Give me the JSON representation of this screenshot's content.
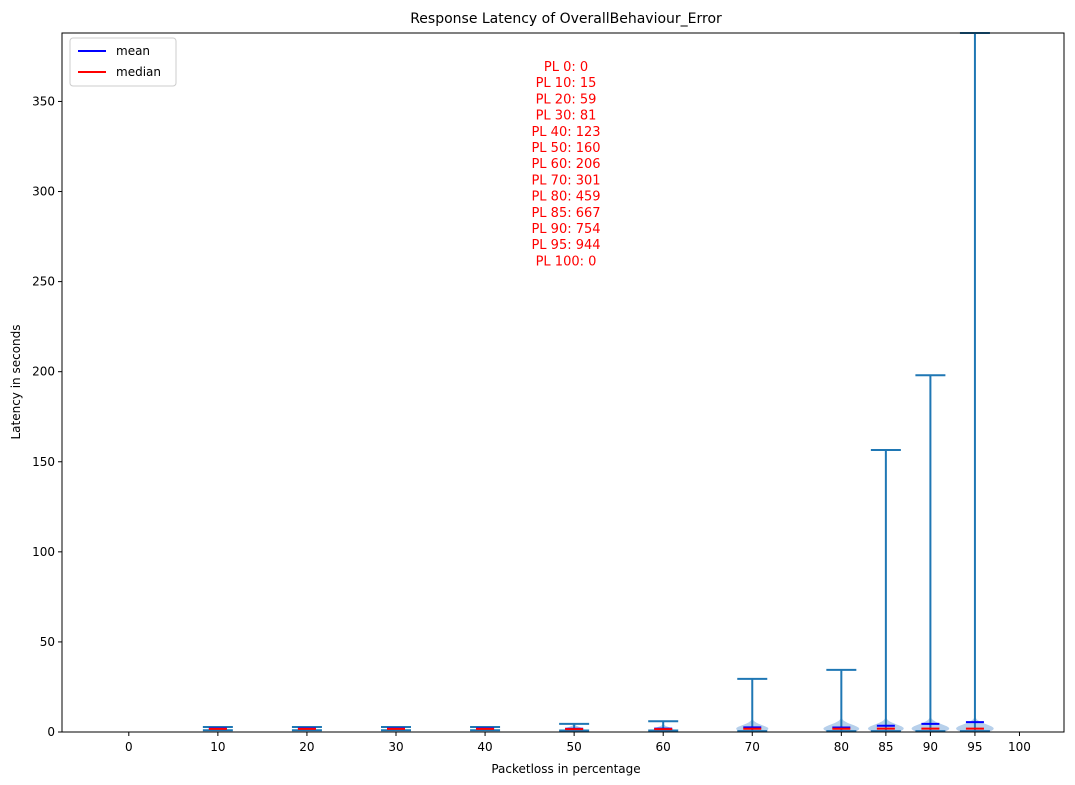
{
  "chart_data": {
    "type": "violin",
    "title": "Response Latency of OverallBehaviour_Error",
    "xlabel": "Packetloss in percentage",
    "ylabel": "Latency in seconds",
    "x_ticks": [
      0,
      10,
      20,
      30,
      40,
      50,
      60,
      70,
      80,
      85,
      90,
      95,
      100
    ],
    "xlim": [
      -7.5,
      105
    ],
    "ylim": [
      0,
      388
    ],
    "y_ticks": [
      0,
      50,
      100,
      150,
      200,
      250,
      300,
      350
    ],
    "grid": false,
    "legend": {
      "placement": "top-left",
      "entries": [
        {
          "label": "mean",
          "color": "#0000ff"
        },
        {
          "label": "median",
          "color": "#ff0000"
        }
      ]
    },
    "colors": {
      "body": "#aac8e8",
      "whisker": "#1f77b4",
      "mean": "#0000ff",
      "median": "#ff0000"
    },
    "series": [
      {
        "x": 10,
        "min": 1.0,
        "max": 2.8,
        "mean": 2.0,
        "median": 1.7,
        "spread": 1.0
      },
      {
        "x": 20,
        "min": 1.0,
        "max": 2.8,
        "mean": 2.0,
        "median": 1.7,
        "spread": 1.0
      },
      {
        "x": 30,
        "min": 1.0,
        "max": 2.8,
        "mean": 2.0,
        "median": 1.7,
        "spread": 1.0
      },
      {
        "x": 40,
        "min": 1.0,
        "max": 2.8,
        "mean": 2.0,
        "median": 1.7,
        "spread": 1.0
      },
      {
        "x": 50,
        "min": 0.8,
        "max": 4.5,
        "mean": 1.8,
        "median": 1.6,
        "spread": 1.0
      },
      {
        "x": 60,
        "min": 0.8,
        "max": 6.0,
        "mean": 1.9,
        "median": 1.6,
        "spread": 1.0
      },
      {
        "x": 70,
        "min": 0.5,
        "max": 29.5,
        "mean": 2.6,
        "median": 1.8,
        "spread": 1.8
      },
      {
        "x": 80,
        "min": 0.5,
        "max": 34.5,
        "mean": 2.5,
        "median": 1.8,
        "spread": 2.0
      },
      {
        "x": 85,
        "min": 0.5,
        "max": 156.5,
        "mean": 3.5,
        "median": 1.9,
        "spread": 2.0
      },
      {
        "x": 90,
        "min": 0.5,
        "max": 198.0,
        "mean": 4.5,
        "median": 1.9,
        "spread": 2.1
      },
      {
        "x": 95,
        "min": 0.5,
        "max": 388.0,
        "mean": 5.5,
        "median": 1.9,
        "spread": 2.1
      }
    ],
    "annotation": {
      "lines": [
        "PL 0: 0",
        "PL 10: 15",
        "PL 20: 59",
        "PL 30: 81",
        "PL 40: 123",
        "PL 50: 160",
        "PL 60: 206",
        "PL 70: 301",
        "PL 80: 459",
        "PL 85: 667",
        "PL 90: 754",
        "PL 95: 944",
        "PL 100: 0"
      ],
      "color": "#ff0000"
    }
  }
}
